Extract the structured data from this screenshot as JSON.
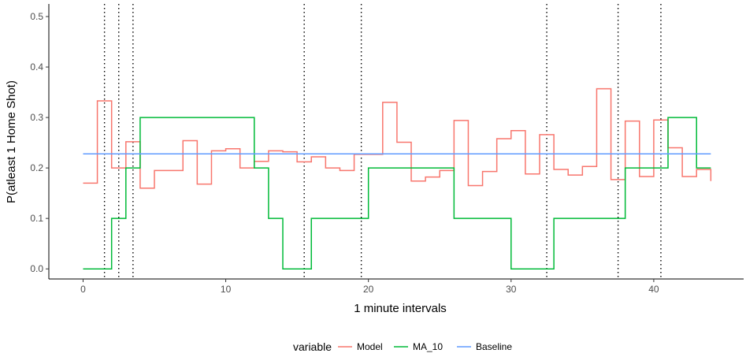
{
  "chart_data": {
    "type": "line",
    "step": true,
    "xlabel": "1 minute intervals",
    "ylabel": "P(atleast 1 Home Shot)",
    "xlim": [
      -2.4,
      46.3
    ],
    "ylim": [
      -0.02,
      0.525
    ],
    "x_ticks": [
      0,
      10,
      20,
      30,
      40
    ],
    "y_ticks": [
      0.0,
      0.1,
      0.2,
      0.3,
      0.4,
      0.5
    ],
    "y_tick_labels": [
      "0.0",
      "0.1",
      "0.2",
      "0.3",
      "0.4",
      "0.5"
    ],
    "grid": false,
    "axis_lines": [
      "left",
      "bottom"
    ],
    "legend": {
      "title": "variable",
      "position": "bottom",
      "entries": [
        "Model",
        "MA_10",
        "Baseline"
      ]
    },
    "vlines": {
      "style": "dotted",
      "color": "#000000",
      "x": [
        1.5,
        2.5,
        3.5,
        15.5,
        19.5,
        32.5,
        37.5,
        40.5
      ]
    },
    "series": [
      {
        "name": "Model",
        "color": "#F8766D",
        "x": [
          0,
          1,
          2,
          3,
          4,
          5,
          6,
          7,
          8,
          9,
          10,
          11,
          12,
          13,
          14,
          15,
          16,
          17,
          18,
          19,
          20,
          21,
          22,
          23,
          24,
          25,
          26,
          27,
          28,
          29,
          30,
          31,
          32,
          33,
          34,
          35,
          36,
          37,
          38,
          39,
          40,
          41,
          42,
          43,
          44
        ],
        "values": [
          0.17,
          0.333,
          0.2,
          0.252,
          0.16,
          0.195,
          0.195,
          0.254,
          0.168,
          0.234,
          0.238,
          0.2,
          0.213,
          0.234,
          0.232,
          0.212,
          0.222,
          0.2,
          0.195,
          0.227,
          0.227,
          0.33,
          0.251,
          0.174,
          0.182,
          0.195,
          0.294,
          0.165,
          0.193,
          0.258,
          0.274,
          0.188,
          0.266,
          0.197,
          0.186,
          0.203,
          0.357,
          0.177,
          0.293,
          0.183,
          0.295,
          0.24,
          0.183,
          0.197,
          0.174
        ]
      },
      {
        "name": "MA_10",
        "color": "#00BA38",
        "x": [
          0,
          1,
          2,
          3,
          4,
          5,
          6,
          7,
          8,
          9,
          10,
          11,
          12,
          13,
          14,
          15,
          16,
          17,
          18,
          19,
          20,
          21,
          22,
          23,
          24,
          25,
          26,
          27,
          28,
          29,
          30,
          31,
          32,
          33,
          34,
          35,
          36,
          37,
          38,
          39,
          40,
          41,
          42,
          43,
          44
        ],
        "values": [
          0.0,
          0.0,
          0.1,
          0.2,
          0.3,
          0.3,
          0.3,
          0.3,
          0.3,
          0.3,
          0.3,
          0.3,
          0.2,
          0.1,
          0.0,
          0.0,
          0.1,
          0.1,
          0.1,
          0.1,
          0.2,
          0.2,
          0.2,
          0.2,
          0.2,
          0.2,
          0.1,
          0.1,
          0.1,
          0.1,
          0.0,
          0.0,
          0.0,
          0.1,
          0.1,
          0.1,
          0.1,
          0.1,
          0.2,
          0.2,
          0.2,
          0.3,
          0.3,
          0.2,
          0.2
        ]
      },
      {
        "name": "Baseline",
        "color": "#619CFF",
        "x": [
          0,
          44
        ],
        "values": [
          0.228,
          0.228
        ]
      }
    ]
  }
}
